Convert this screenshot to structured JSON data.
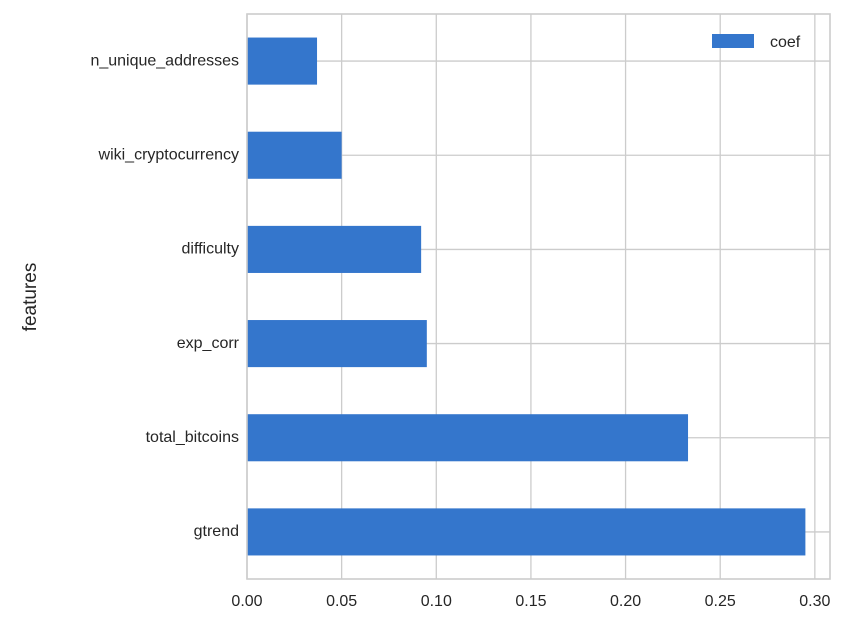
{
  "chart_data": {
    "type": "bar",
    "orientation": "horizontal",
    "categories": [
      "gtrend",
      "total_bitcoins",
      "exp_corr",
      "difficulty",
      "wiki_cryptocurrency",
      "n_unique_addresses"
    ],
    "series": [
      {
        "name": "coef",
        "values": [
          0.295,
          0.233,
          0.095,
          0.092,
          0.05,
          0.037
        ]
      }
    ],
    "xlim": [
      0.0,
      0.308
    ],
    "xticks": [
      0.0,
      0.05,
      0.1,
      0.15,
      0.2,
      0.25,
      0.3
    ],
    "xtick_labels": [
      "0.00",
      "0.05",
      "0.10",
      "0.15",
      "0.20",
      "0.25",
      "0.30"
    ],
    "ylabel": "features",
    "xlabel": "",
    "legend": {
      "position": "top-right",
      "labels": [
        "coef"
      ]
    },
    "grid": true,
    "colors": {
      "bar": "#3476CC",
      "grid": "#cccccc",
      "text": "#262626"
    }
  }
}
